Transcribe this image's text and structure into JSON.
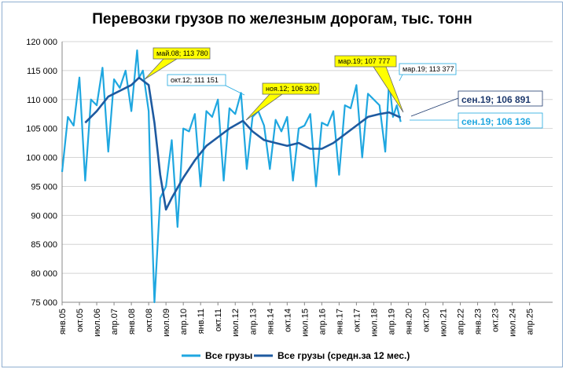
{
  "chart_data": {
    "type": "line",
    "title": "Перевозки грузов по железным дорогам, тыс. тонн",
    "xlabel": "",
    "ylabel": "",
    "ylim": [
      75000,
      120000
    ],
    "yticks": [
      "75 000",
      "80 000",
      "85 000",
      "90 000",
      "95 000",
      "100 000",
      "105 000",
      "110 000",
      "115 000",
      "120 000"
    ],
    "xticks": [
      "янв.05",
      "окт.05",
      "июл.06",
      "апр.07",
      "янв.08",
      "окт.08",
      "июл.09",
      "апр.10",
      "янв.11",
      "окт.11",
      "июл.12",
      "апр.13",
      "янв.14",
      "окт.14",
      "июл.15",
      "апр.16",
      "янв.17",
      "окт.17",
      "июл.18",
      "апр.19",
      "янв.20",
      "окт.20",
      "июл.21",
      "апр.22",
      "янв.23",
      "окт.23",
      "июл.24",
      "апр.25"
    ],
    "grid": true,
    "legend": "bottom",
    "series": [
      {
        "name": "Все грузы",
        "color": "#1fa7e0",
        "x": [
          "2005-01",
          "2005-04",
          "2005-07",
          "2005-10",
          "2006-01",
          "2006-04",
          "2006-07",
          "2006-10",
          "2007-01",
          "2007-04",
          "2007-07",
          "2007-10",
          "2008-01",
          "2008-04",
          "2008-05",
          "2008-07",
          "2008-10",
          "2008-11",
          "2009-01",
          "2009-04",
          "2009-07",
          "2009-10",
          "2010-01",
          "2010-04",
          "2010-07",
          "2010-10",
          "2011-01",
          "2011-04",
          "2011-07",
          "2011-10",
          "2012-01",
          "2012-04",
          "2012-07",
          "2012-10",
          "2013-01",
          "2013-04",
          "2013-07",
          "2013-10",
          "2014-01",
          "2014-04",
          "2014-07",
          "2014-10",
          "2015-01",
          "2015-04",
          "2015-07",
          "2015-10",
          "2016-01",
          "2016-04",
          "2016-07",
          "2016-10",
          "2017-01",
          "2017-04",
          "2017-07",
          "2017-10",
          "2018-01",
          "2018-04",
          "2018-07",
          "2018-10",
          "2019-01",
          "2019-03",
          "2019-05",
          "2019-07",
          "2019-09"
        ],
        "values": [
          97500,
          107000,
          105500,
          113800,
          96000,
          110000,
          109000,
          115500,
          101000,
          113500,
          112000,
          115000,
          108000,
          118500,
          113780,
          115000,
          108000,
          95000,
          75000,
          93000,
          95000,
          103000,
          88000,
          105000,
          104500,
          107500,
          95000,
          108000,
          107000,
          110000,
          96000,
          108500,
          107500,
          111151,
          98000,
          107000,
          108000,
          105500,
          98000,
          106500,
          104500,
          107000,
          96000,
          105000,
          105500,
          107500,
          95000,
          106000,
          105500,
          108000,
          97000,
          109000,
          108500,
          112500,
          100000,
          111000,
          110000,
          109000,
          101000,
          113377,
          107000,
          109000,
          106136
        ]
      },
      {
        "name": "Все грузы (средн.за 12 мес.)",
        "color": "#1e5aa0",
        "x": [
          "2005-01",
          "2005-07",
          "2006-01",
          "2006-07",
          "2007-01",
          "2007-07",
          "2008-01",
          "2008-05",
          "2008-10",
          "2009-01",
          "2009-04",
          "2009-07",
          "2009-10",
          "2010-04",
          "2010-10",
          "2011-04",
          "2011-10",
          "2012-04",
          "2012-11",
          "2013-04",
          "2013-10",
          "2014-04",
          "2014-10",
          "2015-04",
          "2015-10",
          "2016-04",
          "2016-10",
          "2017-04",
          "2017-10",
          "2018-04",
          "2018-10",
          "2019-03",
          "2019-09"
        ],
        "values": [
          null,
          null,
          106000,
          108000,
          110500,
          111500,
          112500,
          113780,
          112500,
          106000,
          97000,
          91000,
          93000,
          96500,
          99500,
          102000,
          103500,
          105000,
          106320,
          104500,
          103000,
          102500,
          102000,
          102500,
          101500,
          101500,
          102500,
          104000,
          105500,
          107000,
          107500,
          107777,
          106891
        ]
      }
    ],
    "annotations": [
      {
        "label": "май.08;",
        "value": "113 780"
      },
      {
        "label": "окт.12;",
        "value": "111 151"
      },
      {
        "label": "ноя.12;",
        "value": "106 320"
      },
      {
        "label": "мар.19;",
        "value": "107 777"
      },
      {
        "label": "мар.19;",
        "value": "113 377"
      },
      {
        "label": "сен.19;",
        "value": "106 891"
      },
      {
        "label": "сен.19;",
        "value": "106 136"
      }
    ]
  },
  "colors": {
    "grid": "#d4d4d4",
    "axis": "#888888",
    "yellow": "#ffff00",
    "annotation_light": "#1fa7e0",
    "annotation_dark": "#1e3a6e"
  }
}
